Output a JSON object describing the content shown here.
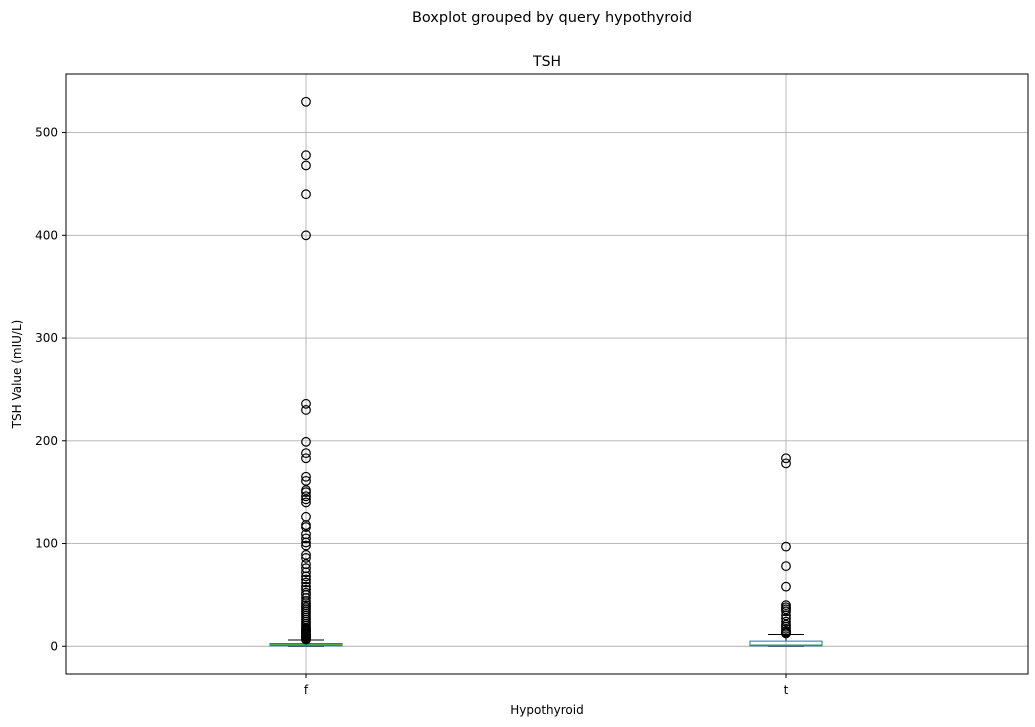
{
  "chart_data": {
    "type": "boxplot",
    "suptitle": "Boxplot grouped by query hypothyroid",
    "title": "TSH",
    "xlabel": "Hypothyroid",
    "ylabel": "TSH Value (mIU/L)",
    "ylim": [
      -27,
      557
    ],
    "yticks": [
      0,
      100,
      200,
      300,
      400,
      500
    ],
    "grid": true,
    "categories": [
      "f",
      "t"
    ],
    "boxes": [
      {
        "category": "f",
        "whisker_low": 0.005,
        "q1": 0.4,
        "median": 1.4,
        "q3": 2.7,
        "whisker_high": 6.1,
        "outliers": [
          530,
          478,
          468,
          440,
          400,
          236,
          230,
          199,
          188,
          183,
          165,
          161,
          152,
          150,
          146,
          143,
          140,
          126,
          118,
          116,
          109,
          105,
          101,
          98,
          89,
          86,
          80,
          76,
          72,
          68,
          65,
          62,
          58,
          55,
          52,
          50,
          47,
          44,
          42,
          40,
          38,
          36,
          34,
          32,
          30,
          28,
          26,
          24,
          22,
          20,
          18,
          17,
          16,
          15,
          14,
          13,
          12,
          11,
          10,
          9.5,
          9,
          8.5,
          8,
          7.5,
          7,
          6.6
        ]
      },
      {
        "category": "t",
        "whisker_low": 0.005,
        "q1": 0.3,
        "median": 1.0,
        "q3": 5.0,
        "whisker_high": 11.5,
        "outliers": [
          183,
          178,
          97,
          78,
          58,
          40,
          38,
          36,
          34,
          30,
          27,
          24,
          21,
          19,
          17,
          15,
          14,
          13,
          12.5
        ]
      }
    ]
  },
  "colors": {
    "box": "#1f77b4",
    "median": "#2ca02c",
    "whisker": "#000000",
    "grid": "#b0b0b0",
    "outlier_edge": "#000000"
  }
}
